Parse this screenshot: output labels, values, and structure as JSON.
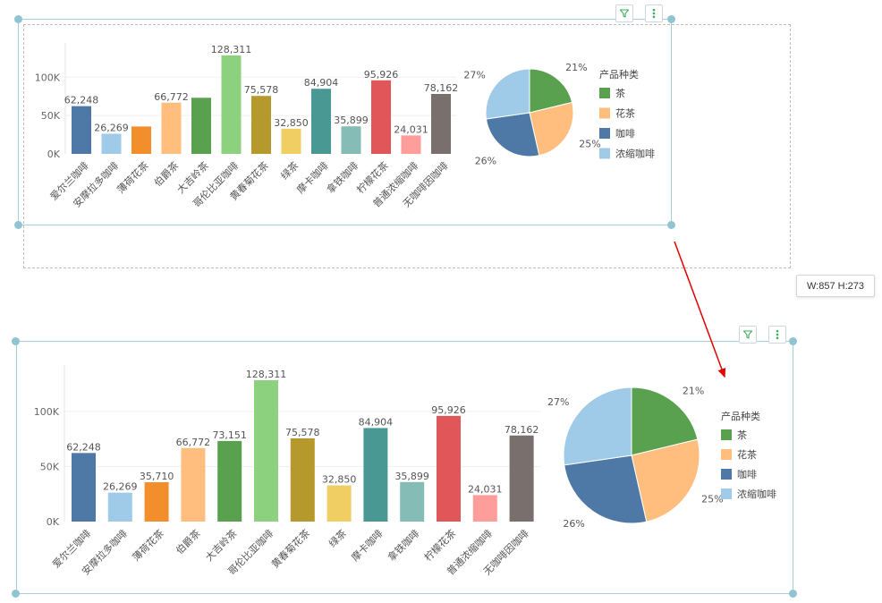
{
  "size_tooltip": "W:857  H:273",
  "colors": {
    "selection_border": "#a8cfd8",
    "handle": "#90c4d2",
    "dashed_outline": "#bbbbbb",
    "arrow": "#e00000",
    "control_icon": "#3aaa5b"
  },
  "icons": {
    "filter": "filter-icon",
    "more": "more-vertical-icon"
  },
  "chart_data": [
    {
      "type": "bar",
      "panel": "before",
      "categories": [
        "爱尔兰咖啡",
        "安摩拉多咖啡",
        "薄荷花茶",
        "伯爵茶",
        "大吉岭茶",
        "哥伦比亚咖啡",
        "黄春菊花茶",
        "绿茶",
        "摩卡咖啡",
        "拿铁咖啡",
        "柠檬花茶",
        "普通浓缩咖啡",
        "无咖啡因咖啡"
      ],
      "values": [
        62248,
        26269,
        35710,
        66772,
        73151,
        128311,
        75578,
        32850,
        84904,
        35899,
        95926,
        24031,
        78162
      ],
      "value_labels": [
        "62,248",
        "26,269",
        "",
        "66,772",
        "",
        "128,311",
        "75,578",
        "32,850",
        "84,904",
        "35,899",
        "95,926",
        "24,031",
        "78,162"
      ],
      "colors": [
        "#4e79a7",
        "#a0cbe8",
        "#f28e2b",
        "#ffbe7d",
        "#59a14f",
        "#8cd17d",
        "#b6992d",
        "#f1ce63",
        "#499894",
        "#86bcb6",
        "#e15759",
        "#ff9d9a",
        "#79706e"
      ],
      "yticks": [
        "0K",
        "50K",
        "100K"
      ],
      "ylim": [
        0,
        128311
      ],
      "grid": true
    },
    {
      "type": "pie",
      "panel": "before",
      "legend_title": "产品种类",
      "labels": [
        "茶",
        "花茶",
        "咖啡",
        "浓缩咖啡"
      ],
      "percent_labels": [
        "21%",
        "25%",
        "26%",
        "27%"
      ],
      "values": [
        21,
        25,
        26,
        27
      ],
      "colors": [
        "#59a14f",
        "#ffbe7d",
        "#4e79a7",
        "#a0cbe8"
      ],
      "legend_placement": "right"
    },
    {
      "type": "bar",
      "panel": "after",
      "categories": [
        "爱尔兰咖啡",
        "安摩拉多咖啡",
        "薄荷花茶",
        "伯爵茶",
        "大吉岭茶",
        "哥伦比亚咖啡",
        "黄春菊花茶",
        "绿茶",
        "摩卡咖啡",
        "拿铁咖啡",
        "柠檬花茶",
        "普通浓缩咖啡",
        "无咖啡因咖啡"
      ],
      "values": [
        62248,
        26269,
        35710,
        66772,
        73151,
        128311,
        75578,
        32850,
        84904,
        35899,
        95926,
        24031,
        78162
      ],
      "value_labels": [
        "62,248",
        "26,269",
        "35,710",
        "66,772",
        "73,151",
        "128,311",
        "75,578",
        "32,850",
        "84,904",
        "35,899",
        "95,926",
        "24,031",
        "78,162"
      ],
      "colors": [
        "#4e79a7",
        "#a0cbe8",
        "#f28e2b",
        "#ffbe7d",
        "#59a14f",
        "#8cd17d",
        "#b6992d",
        "#f1ce63",
        "#499894",
        "#86bcb6",
        "#e15759",
        "#ff9d9a",
        "#79706e"
      ],
      "yticks": [
        "0K",
        "50K",
        "100K"
      ],
      "ylim": [
        0,
        128311
      ],
      "grid": true
    },
    {
      "type": "pie",
      "panel": "after",
      "legend_title": "产品种类",
      "labels": [
        "茶",
        "花茶",
        "咖啡",
        "浓缩咖啡"
      ],
      "percent_labels": [
        "21%",
        "25%",
        "26%",
        "27%"
      ],
      "values": [
        21,
        25,
        26,
        27
      ],
      "colors": [
        "#59a14f",
        "#ffbe7d",
        "#4e79a7",
        "#a0cbe8"
      ],
      "legend_placement": "right"
    }
  ]
}
